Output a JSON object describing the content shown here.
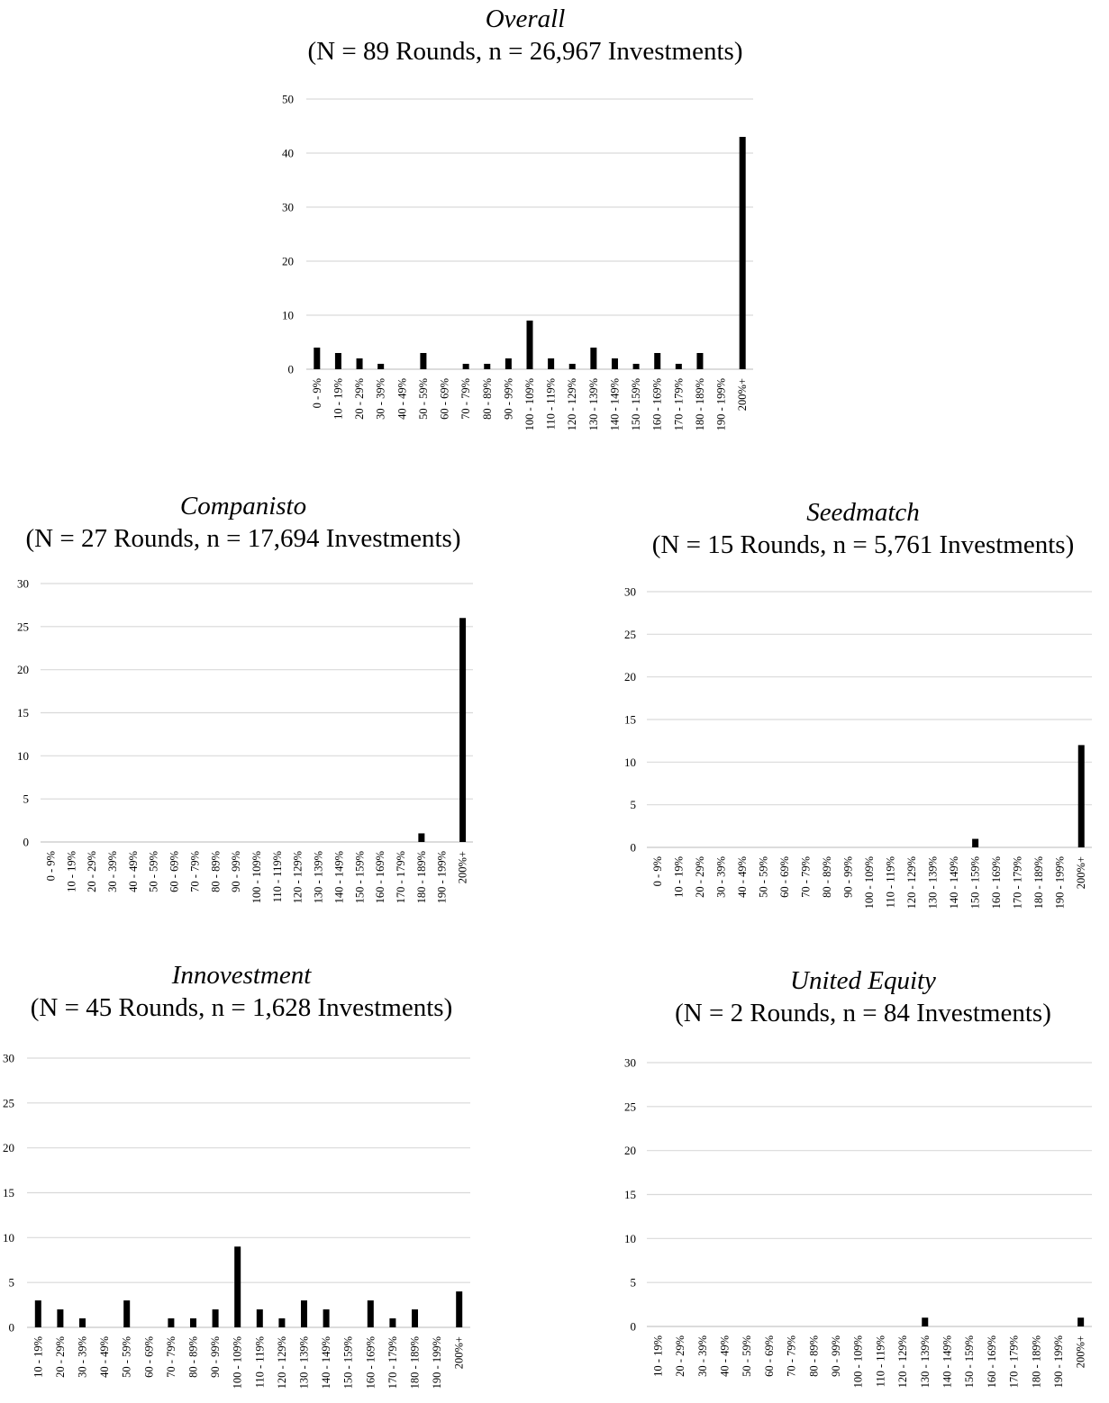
{
  "chart_data": [
    {
      "type": "bar",
      "title": "Overall",
      "subtitle": "(N = 89 Rounds, n = 26,967 Investments)",
      "categories": [
        "0 - 9%",
        "10 - 19%",
        "20 - 29%",
        "30 - 39%",
        "40 - 49%",
        "50 - 59%",
        "60 - 69%",
        "70 - 79%",
        "80 - 89%",
        "90 - 99%",
        "100 - 109%",
        "110 - 119%",
        "120 - 129%",
        "130 - 139%",
        "140 - 149%",
        "150 - 159%",
        "160 - 169%",
        "170 - 179%",
        "180 - 189%",
        "190 - 199%",
        "200%+"
      ],
      "values": [
        4,
        3,
        2,
        1,
        0,
        3,
        0,
        1,
        1,
        2,
        9,
        2,
        1,
        4,
        2,
        1,
        3,
        1,
        3,
        0,
        43
      ],
      "yticks": [
        0,
        10,
        20,
        30,
        40,
        50
      ],
      "ylim": [
        0,
        50
      ],
      "grid": true
    },
    {
      "type": "bar",
      "title": "Companisto",
      "subtitle": "(N = 27 Rounds, n = 17,694 Investments)",
      "categories": [
        "0 - 9%",
        "10 - 19%",
        "20 - 29%",
        "30 - 39%",
        "40 - 49%",
        "50 - 59%",
        "60 - 69%",
        "70 - 79%",
        "80 - 89%",
        "90 - 99%",
        "100 - 109%",
        "110 - 119%",
        "120 - 129%",
        "130 - 139%",
        "140 - 149%",
        "150 - 159%",
        "160 - 169%",
        "170 - 179%",
        "180 - 189%",
        "190 - 199%",
        "200%+"
      ],
      "values": [
        0,
        0,
        0,
        0,
        0,
        0,
        0,
        0,
        0,
        0,
        0,
        0,
        0,
        0,
        0,
        0,
        0,
        0,
        1,
        0,
        26
      ],
      "yticks": [
        0,
        5,
        10,
        15,
        20,
        25,
        30
      ],
      "ylim": [
        0,
        30
      ],
      "grid": true
    },
    {
      "type": "bar",
      "title": "Seedmatch",
      "subtitle": "(N = 15 Rounds, n = 5,761 Investments)",
      "categories": [
        "0 - 9%",
        "10 - 19%",
        "20 - 29%",
        "30 - 39%",
        "40 - 49%",
        "50 - 59%",
        "60 - 69%",
        "70 - 79%",
        "80 - 89%",
        "90 - 99%",
        "100 - 109%",
        "110 - 119%",
        "120 - 129%",
        "130 - 139%",
        "140 - 149%",
        "150 - 159%",
        "160 - 169%",
        "170 - 179%",
        "180 - 189%",
        "190 - 199%",
        "200%+"
      ],
      "values": [
        0,
        0,
        0,
        0,
        0,
        0,
        0,
        0,
        0,
        0,
        0,
        0,
        0,
        0,
        0,
        1,
        0,
        0,
        0,
        0,
        12
      ],
      "yticks": [
        0,
        5,
        10,
        15,
        20,
        25,
        30
      ],
      "ylim": [
        0,
        30
      ],
      "grid": true
    },
    {
      "type": "bar",
      "title": "Innovestment",
      "subtitle": "(N = 45 Rounds, n = 1,628 Investments)",
      "categories": [
        "10 - 19%",
        "20 - 29%",
        "30 - 39%",
        "40 - 49%",
        "50 - 59%",
        "60 - 69%",
        "70 - 79%",
        "80 - 89%",
        "90 - 99%",
        "100 - 109%",
        "110 - 119%",
        "120 - 129%",
        "130 - 139%",
        "140 - 149%",
        "150 - 159%",
        "160 - 169%",
        "170 - 179%",
        "180 - 189%",
        "190 - 199%",
        "200%+"
      ],
      "values": [
        3,
        2,
        1,
        0,
        3,
        0,
        1,
        1,
        2,
        9,
        2,
        1,
        3,
        2,
        0,
        3,
        1,
        2,
        0,
        4
      ],
      "yticks": [
        0,
        5,
        10,
        15,
        20,
        25,
        30
      ],
      "ylim": [
        0,
        30
      ],
      "grid": true
    },
    {
      "type": "bar",
      "title": "United Equity",
      "subtitle": "(N = 2 Rounds, n = 84 Investments)",
      "categories": [
        "10 - 19%",
        "20 - 29%",
        "30 - 39%",
        "40 - 49%",
        "50 - 59%",
        "60 - 69%",
        "70 - 79%",
        "80 - 89%",
        "90 - 99%",
        "100 - 109%",
        "110 - 119%",
        "120 - 129%",
        "130 - 139%",
        "140 - 149%",
        "150 - 159%",
        "160 - 169%",
        "170 - 179%",
        "180 - 189%",
        "190 - 199%",
        "200%+"
      ],
      "values": [
        0,
        0,
        0,
        0,
        0,
        0,
        0,
        0,
        0,
        0,
        0,
        0,
        1,
        0,
        0,
        0,
        0,
        0,
        0,
        1
      ],
      "yticks": [
        0,
        5,
        10,
        15,
        20,
        25,
        30
      ],
      "ylim": [
        0,
        30
      ],
      "grid": true
    }
  ]
}
